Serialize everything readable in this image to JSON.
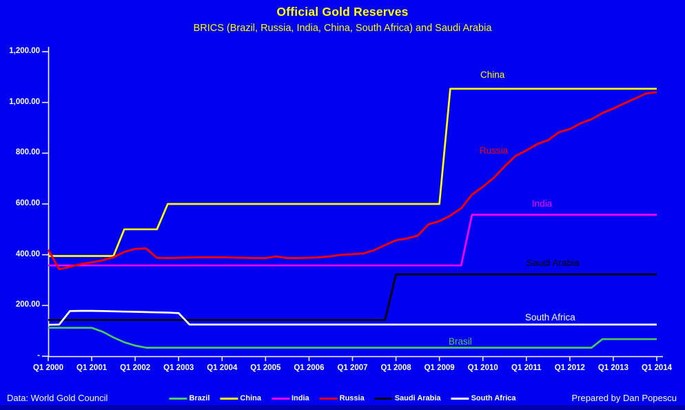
{
  "colors": {
    "background": "#0000f0",
    "bottom_strip": "#0000ae",
    "title_text": "#ffff00",
    "axis_and_text": "#ffffff"
  },
  "chart_data": {
    "type": "line",
    "title": "Official Gold Reserves",
    "subtitle": "BRICS (Brazil, Russia, India, China, South Africa) and Saudi Arabia",
    "x_axis": {
      "tick_labels": [
        "Q1 2000",
        "Q1 2001",
        "Q1 2002",
        "Q1 2003",
        "Q1 2004",
        "Q1 2005",
        "Q1 2006",
        "Q1 2007",
        "Q1 2008",
        "Q1 2009",
        "Q1 2010",
        "Q1 2011",
        "Q1 2012",
        "Q1 2013",
        "Q1 2014"
      ],
      "resolution": "quarterly",
      "range_note": "data points run quarterly from Q1 2000 to Q1 2014"
    },
    "y_axis": {
      "tick_labels": [
        "1,200.00",
        "1,000.00",
        "800.00",
        "600.00",
        "400.00",
        "200.00",
        "-"
      ],
      "tick_values": [
        1200,
        1000,
        800,
        600,
        400,
        200,
        0
      ],
      "range": [
        0,
        1200
      ],
      "grid": false
    },
    "legend_position": "bottom-center",
    "series": [
      {
        "name": "Brazil",
        "annotation": "Brasil",
        "color": "#4ec95e",
        "values": [
          112,
          112,
          112,
          112,
          112,
          97,
          74,
          55,
          42,
          33.6,
          33.6,
          33.6,
          33.6,
          33.6,
          33.6,
          33.6,
          33.6,
          33.6,
          33.6,
          33.6,
          33.6,
          33.6,
          33.6,
          33.6,
          33.6,
          33.6,
          33.6,
          33.6,
          33.6,
          33.6,
          33.6,
          33.6,
          33.6,
          33.6,
          33.6,
          33.6,
          33.6,
          33.6,
          33.6,
          33.6,
          33.6,
          33.6,
          33.6,
          33.6,
          33.6,
          33.6,
          33.6,
          33.6,
          33.6,
          33.6,
          33.6,
          67.2,
          67.2,
          67.2,
          67.2,
          67.2,
          67.2
        ]
      },
      {
        "name": "China",
        "annotation": "China",
        "color": "#ffff00",
        "values": [
          395,
          395,
          395,
          395,
          395,
          395,
          395,
          500,
          500,
          500,
          500,
          600,
          600,
          600,
          600,
          600,
          600,
          600,
          600,
          600,
          600,
          600,
          600,
          600,
          600,
          600,
          600,
          600,
          600,
          600,
          600,
          600,
          600,
          600,
          600,
          600,
          600,
          1054,
          1054,
          1054,
          1054,
          1054,
          1054,
          1054,
          1054,
          1054,
          1054,
          1054,
          1054,
          1054,
          1054,
          1054,
          1054,
          1054,
          1054,
          1054,
          1054
        ]
      },
      {
        "name": "India",
        "annotation": "India",
        "color": "#ff00ff",
        "values": [
          357.7,
          357.7,
          357.7,
          357.7,
          357.7,
          357.7,
          357.7,
          357.7,
          357.7,
          357.7,
          357.7,
          357.7,
          357.7,
          357.7,
          357.7,
          357.7,
          357.7,
          357.7,
          357.7,
          357.7,
          357.7,
          357.7,
          357.7,
          357.7,
          357.7,
          357.7,
          357.7,
          357.7,
          357.7,
          357.7,
          357.7,
          357.7,
          357.7,
          357.7,
          357.7,
          357.7,
          357.7,
          357.7,
          357.7,
          557.7,
          557.7,
          557.7,
          557.7,
          557.7,
          557.7,
          557.7,
          557.7,
          557.7,
          557.7,
          557.7,
          557.7,
          557.7,
          557.7,
          557.7,
          557.7,
          557.7,
          557.7
        ]
      },
      {
        "name": "Russia",
        "annotation": "Russia",
        "color": "#f50000",
        "values": [
          420,
          343,
          352,
          363,
          370,
          378,
          390,
          411,
          423,
          425,
          388,
          387,
          388,
          389,
          390,
          390,
          390,
          389,
          388,
          387,
          387,
          393,
          387,
          387,
          388,
          390,
          394,
          400,
          402,
          405,
          418,
          438,
          457,
          464,
          475,
          520,
          532,
          554,
          583,
          637,
          668,
          703,
          748,
          789,
          811,
          836,
          851,
          883,
          895,
          918,
          934,
          958,
          976,
          996,
          1015,
          1035,
          1040
        ]
      },
      {
        "name": "Saudi Arabia",
        "annotation": "Saudi Arabia",
        "color": "#000000",
        "values": [
          143,
          143,
          143,
          143,
          143,
          143,
          143,
          143,
          143,
          143,
          143,
          143,
          143,
          143,
          143,
          143,
          143,
          143,
          143,
          143,
          143,
          143,
          143,
          143,
          143,
          143,
          143,
          143,
          143,
          143,
          143,
          143,
          322.9,
          322.9,
          322.9,
          322.9,
          322.9,
          322.9,
          322.9,
          322.9,
          322.9,
          322.9,
          322.9,
          322.9,
          322.9,
          322.9,
          322.9,
          322.9,
          322.9,
          322.9,
          322.9,
          322.9,
          322.9,
          322.9,
          322.9,
          322.9,
          322.9
        ]
      },
      {
        "name": "South Africa",
        "annotation": "South Africa",
        "color": "#ffffff",
        "values": [
          124,
          125,
          178,
          179,
          179,
          178,
          177,
          176,
          175,
          174,
          173,
          172,
          170,
          124.9,
          124.9,
          124.9,
          124.9,
          124.9,
          124.9,
          124.9,
          124.9,
          124.9,
          124.9,
          124.9,
          124.9,
          124.9,
          124.9,
          124.9,
          124.9,
          124.9,
          124.9,
          124.9,
          124.9,
          124.9,
          124.9,
          124.9,
          124.9,
          124.9,
          124.9,
          124.9,
          124.9,
          124.9,
          124.9,
          124.9,
          124.9,
          124.9,
          124.9,
          124.9,
          124.9,
          124.9,
          124.9,
          124.9,
          124.9,
          124.9,
          124.9,
          124.9,
          124.9
        ]
      }
    ]
  },
  "footer": {
    "left": "Data: World Gold Council",
    "right": "Prepared by Dan Popescu"
  }
}
